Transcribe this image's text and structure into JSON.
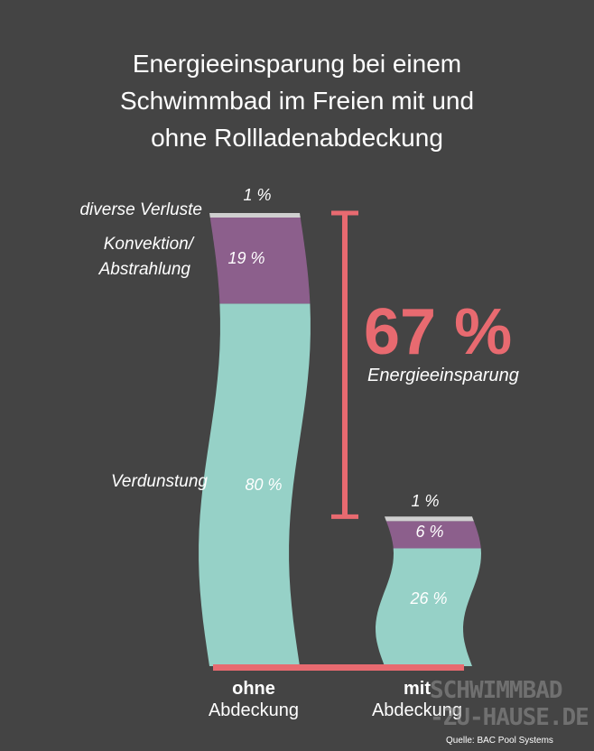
{
  "title_lines": [
    "Energieeinsparung bei einem",
    "Schwimmbad im Freien mit und",
    "ohne Rollladenabdeckung"
  ],
  "chart_data": {
    "type": "bar",
    "stacked": true,
    "title": "Energieeinsparung bei einem Schwimmbad im Freien mit und ohne Rollladenabdeckung",
    "categories": [
      {
        "bold": "ohne",
        "normal": "Abdeckung"
      },
      {
        "bold": "mit",
        "normal": "Abdeckung"
      }
    ],
    "series": [
      {
        "name": "Verdunstung",
        "color": "#96d1c7",
        "values": [
          80,
          26
        ],
        "labels": [
          "80 %",
          "26 %"
        ]
      },
      {
        "name": "Konvektion/ Abstrahlung",
        "color": "#8c5f8c",
        "values": [
          19,
          6
        ],
        "labels": [
          "19 %",
          "6 %"
        ]
      },
      {
        "name": "diverse Verluste",
        "color": "#cfcfcf",
        "values": [
          1,
          1
        ],
        "labels": [
          "1 %",
          "1 %"
        ]
      }
    ],
    "left_labels": {
      "diverse": "diverse Verluste",
      "konvektion_1": "Konvektion/",
      "konvektion_2": "Abstrahlung",
      "verdunstung": "Verdunstung"
    },
    "annotation": {
      "value": "67 %",
      "label": "Energieeinsparung",
      "color": "#e86a70"
    },
    "baseline_color": "#e86a70",
    "ylim": [
      0,
      100
    ]
  },
  "watermark": {
    "line1": "SCHWIMMBAD",
    "line2": "-ZU-HAUSE.DE"
  },
  "source": "Quelle: BAC Pool Systems"
}
